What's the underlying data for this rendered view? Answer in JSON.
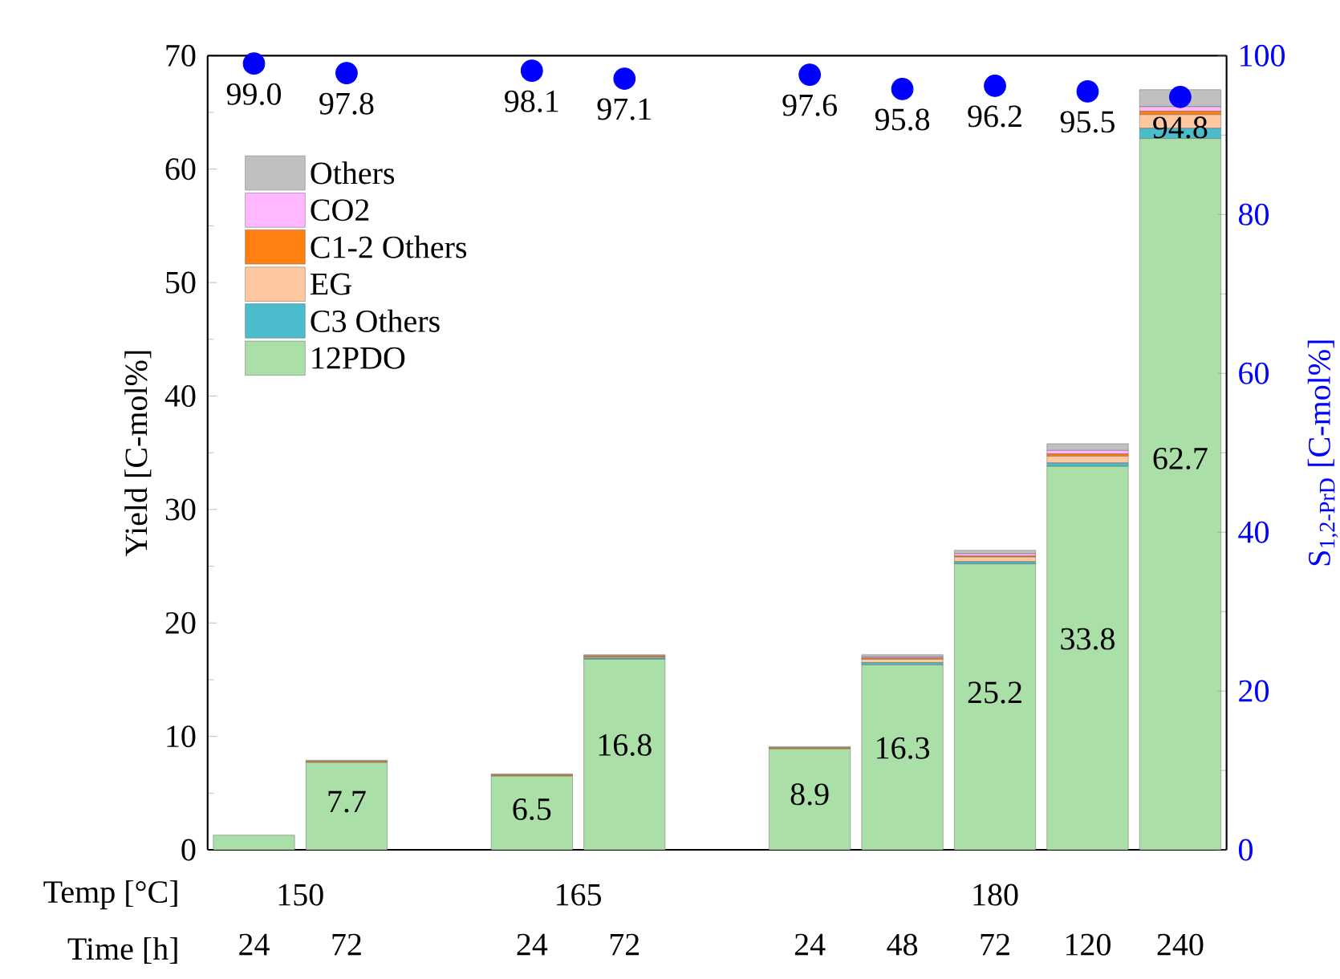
{
  "chart_data": {
    "type": "bar",
    "stacked": true,
    "categories": [
      "24",
      "72",
      null,
      "24",
      "72",
      null,
      "24",
      "48",
      "72",
      "120",
      "240"
    ],
    "xlabel": "Time [h]",
    "ylabel": "Yield [C-mol%]",
    "y2label": "S$_{1,2-PrD}$ [C-mol%]",
    "annotations": [
      "Temp [°C]",
      "150",
      "165",
      "180"
    ],
    "ylim": [
      0,
      70
    ],
    "yticks": [
      0,
      10,
      20,
      30,
      40,
      50,
      60,
      70
    ],
    "y2lim": [
      0,
      100
    ],
    "y2ticks": [
      0,
      20,
      40,
      60,
      80,
      100
    ],
    "legend": "top left",
    "series": [
      {
        "name": "12PDO",
        "color": "#aadfa8",
        "values": [
          1.3,
          7.7,
          null,
          6.5,
          16.8,
          null,
          8.9,
          16.3,
          25.2,
          33.8,
          62.7
        ],
        "value_labels": [
          null,
          "7.7",
          null,
          "6.5",
          "16.8",
          null,
          "8.9",
          "16.3",
          "25.2",
          "33.8",
          "62.7"
        ]
      },
      {
        "name": "C3 Others",
        "color": "#4bbccc",
        "values": [
          0,
          0,
          null,
          0,
          0.1,
          null,
          0,
          0.2,
          0.2,
          0.3,
          0.9
        ]
      },
      {
        "name": "EG",
        "color": "#ffc8a0",
        "values": [
          0,
          0,
          null,
          0,
          0.1,
          null,
          0,
          0.3,
          0.4,
          0.6,
          1.2
        ]
      },
      {
        "name": "C1-2 Others",
        "color": "#ff8010",
        "values": [
          0,
          0.1,
          null,
          0.1,
          0.1,
          null,
          0.1,
          0.1,
          0.1,
          0.2,
          0.3
        ]
      },
      {
        "name": "CO2",
        "color": "#ffb8ff",
        "values": [
          0,
          0,
          null,
          0,
          0,
          null,
          0,
          0.1,
          0.2,
          0.3,
          0.4
        ]
      },
      {
        "name": "Others",
        "color": "#c0c0c0",
        "values": [
          0,
          0.1,
          null,
          0.1,
          0.1,
          null,
          0.1,
          0.2,
          0.3,
          0.6,
          1.5
        ]
      },
      {
        "type": "scatter",
        "axis": "y2",
        "color": "#0000ff",
        "marker": "circle",
        "values": [
          99.0,
          97.8,
          null,
          98.1,
          97.1,
          null,
          97.6,
          95.8,
          96.2,
          95.5,
          94.8
        ],
        "value_labels": [
          "99.0",
          "97.8",
          null,
          "98.1",
          "97.1",
          null,
          "97.6",
          "95.8",
          "96.2",
          "95.5",
          "94.8"
        ]
      }
    ]
  }
}
